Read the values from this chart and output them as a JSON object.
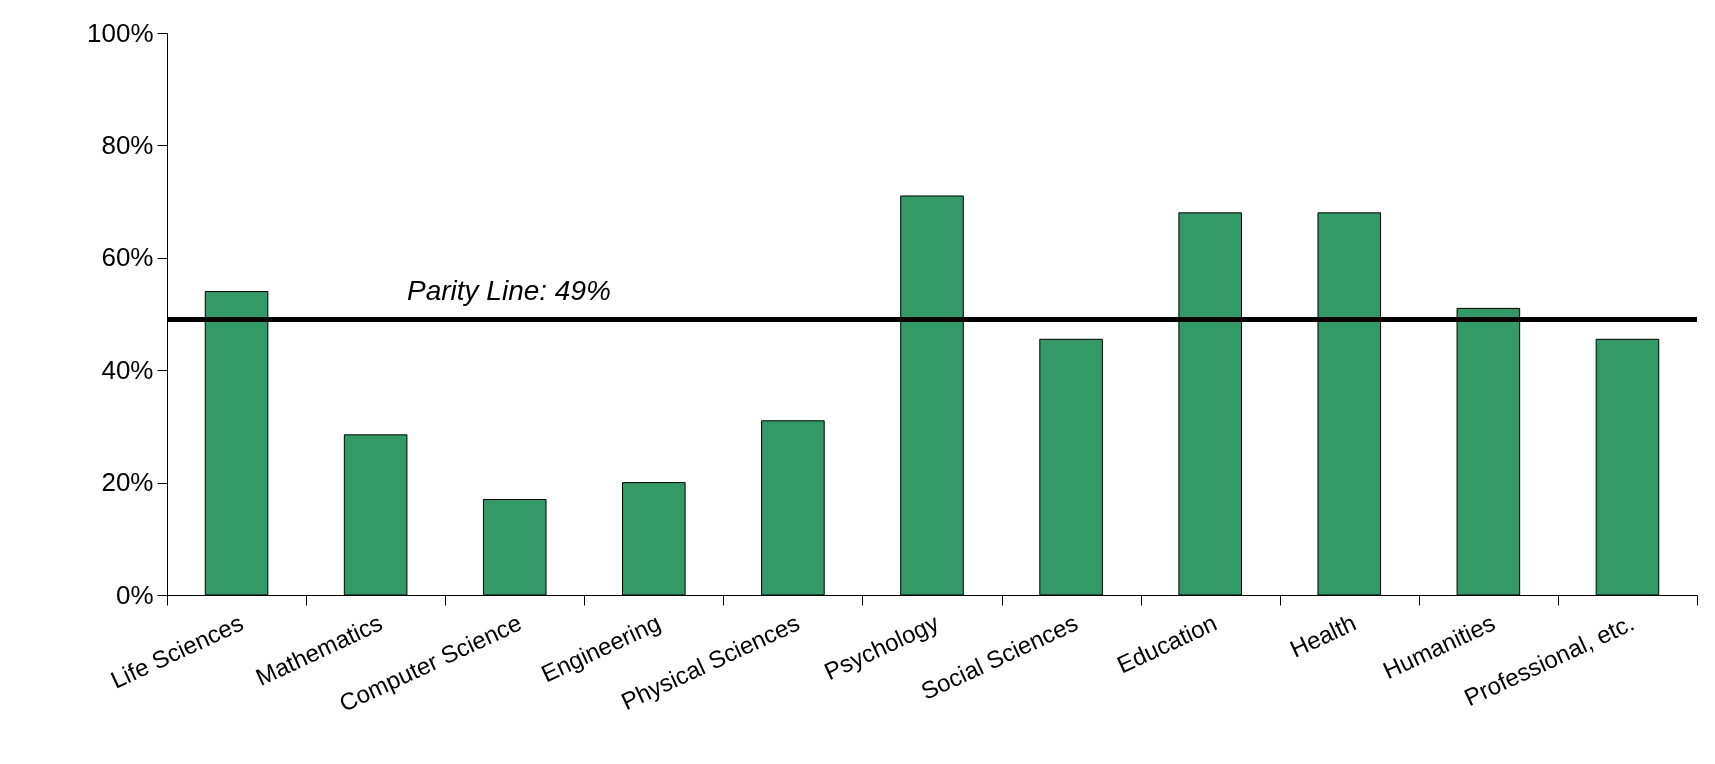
{
  "chart_data": {
    "type": "bar",
    "categories": [
      "Life Sciences",
      "Mathematics",
      "Computer Science",
      "Engineering",
      "Physical Sciences",
      "Psychology",
      "Social Sciences",
      "Education",
      "Health",
      "Humanities",
      "Professional, etc."
    ],
    "values": [
      54,
      28.5,
      17,
      20,
      31,
      71,
      45.5,
      68,
      68,
      51,
      45.5
    ],
    "color": "#339966",
    "ylim": [
      0,
      100
    ],
    "yticks": [
      {
        "value": 0,
        "label": "0%"
      },
      {
        "value": 20,
        "label": "20%"
      },
      {
        "value": 40,
        "label": "40%"
      },
      {
        "value": 60,
        "label": "60%"
      },
      {
        "value": 80,
        "label": "80%"
      },
      {
        "value": 100,
        "label": "100%"
      }
    ],
    "ref_lines": [
      {
        "axis": "y",
        "value": 49,
        "label": "Parity Line: 49%",
        "color": "#000000"
      }
    ],
    "grid": false
  }
}
